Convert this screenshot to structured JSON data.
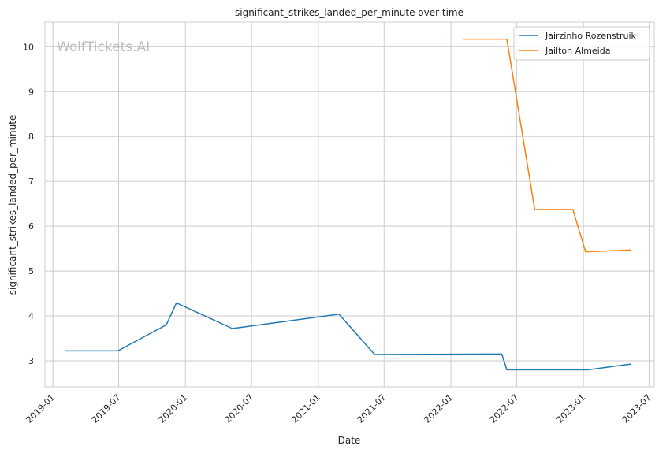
{
  "chart_data": {
    "type": "line",
    "title": "significant_strikes_landed_per_minute over time",
    "xlabel": "Date",
    "ylabel": "significant_strikes_landed_per_minute",
    "watermark": "WolfTickets.AI",
    "x_ticks": [
      "2019-01",
      "2019-07",
      "2020-01",
      "2020-07",
      "2021-01",
      "2021-07",
      "2022-01",
      "2022-07",
      "2023-01",
      "2023-07"
    ],
    "y_ticks": [
      "3",
      "4",
      "5",
      "6",
      "7",
      "8",
      "9",
      "10"
    ],
    "xlim": [
      "2018-12-10",
      "2023-07-15"
    ],
    "ylim": [
      2.42,
      10.55
    ],
    "grid": true,
    "legend_position": "top-right",
    "series": [
      {
        "name": "Jairzinho Rozenstruik",
        "color": "#1f77b4",
        "points": [
          [
            "2019-02-02",
            3.22
          ],
          [
            "2019-06-29",
            3.22
          ],
          [
            "2019-11-09",
            3.8
          ],
          [
            "2019-12-07",
            4.29
          ],
          [
            "2020-05-09",
            3.72
          ],
          [
            "2021-02-27",
            4.04
          ],
          [
            "2021-06-05",
            3.14
          ],
          [
            "2022-05-21",
            3.15
          ],
          [
            "2022-06-04",
            2.8
          ],
          [
            "2023-01-14",
            2.8
          ],
          [
            "2023-05-13",
            2.93
          ]
        ]
      },
      {
        "name": "Jailton Almeida",
        "color": "#ff7f0e",
        "points": [
          [
            "2022-02-05",
            10.17
          ],
          [
            "2022-06-04",
            10.17
          ],
          [
            "2022-08-20",
            6.37
          ],
          [
            "2022-12-03",
            6.37
          ],
          [
            "2023-01-07",
            5.43
          ],
          [
            "2023-05-13",
            5.47
          ]
        ]
      }
    ]
  }
}
